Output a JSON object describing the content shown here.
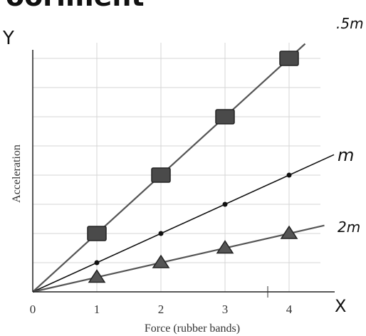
{
  "page_heading_fragment": "ooriment",
  "chart_data": {
    "type": "line",
    "xlabel": "Force (rubber bands)",
    "ylabel": "Acceleration",
    "x_axis_letter": "X",
    "y_axis_letter": "Y",
    "x_ticks": [
      "0",
      "1",
      "2",
      "3",
      "4"
    ],
    "xlim": [
      0,
      4.6
    ],
    "ylim": [
      0,
      8.5
    ],
    "grid": true,
    "series": [
      {
        "name": ".5m",
        "marker": "square",
        "color": "#555555",
        "x": [
          0,
          1,
          2,
          3,
          4
        ],
        "y": [
          0,
          2,
          4,
          6,
          8
        ]
      },
      {
        "name": "m",
        "marker": "dot",
        "color": "#111111",
        "x": [
          0,
          1,
          2,
          3,
          4
        ],
        "y": [
          0,
          1,
          2,
          3,
          4
        ]
      },
      {
        "name": "2m",
        "marker": "triangle",
        "color": "#555555",
        "x": [
          0,
          1,
          2,
          3,
          4
        ],
        "y": [
          0,
          0.5,
          1,
          1.5,
          2
        ]
      }
    ]
  }
}
